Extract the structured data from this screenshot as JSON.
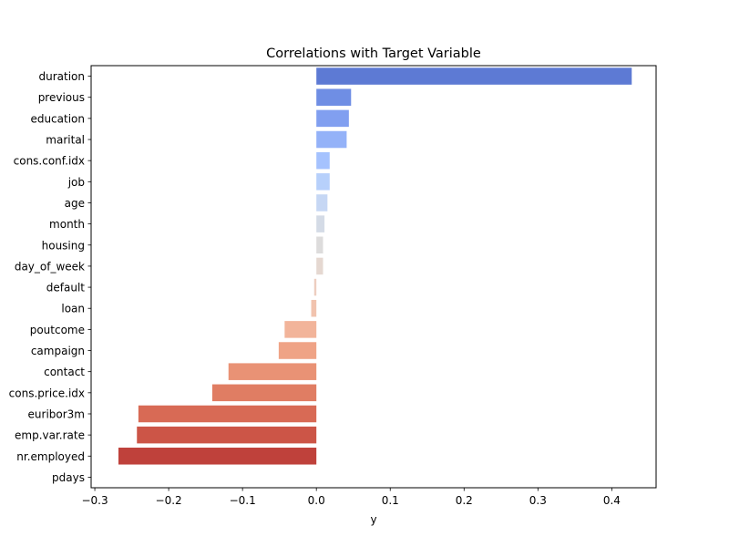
{
  "chart_data": {
    "type": "bar",
    "orientation": "horizontal",
    "title": "Correlations with Target Variable",
    "xlabel": "y",
    "ylabel": "",
    "xlim": [
      -0.305,
      0.46
    ],
    "xticks": [
      -0.3,
      -0.2,
      -0.1,
      0.0,
      0.1,
      0.2,
      0.3,
      0.4
    ],
    "xtick_labels": [
      "−0.3",
      "−0.2",
      "−0.1",
      "0.0",
      "0.1",
      "0.2",
      "0.3",
      "0.4"
    ],
    "grid": false,
    "palette": "coolwarm",
    "categories": [
      "duration",
      "previous",
      "education",
      "marital",
      "cons.conf.idx",
      "job",
      "age",
      "month",
      "housing",
      "day_of_week",
      "default",
      "loan",
      "poutcome",
      "campaign",
      "contact",
      "cons.price.idx",
      "euribor3m",
      "emp.var.rate",
      "nr.employed",
      "pdays"
    ],
    "values": [
      0.427,
      0.047,
      0.044,
      0.041,
      0.018,
      0.018,
      0.015,
      0.011,
      0.009,
      0.009,
      -0.003,
      -0.007,
      -0.043,
      -0.051,
      -0.119,
      -0.141,
      -0.241,
      -0.243,
      -0.268,
      0.0
    ],
    "colors": [
      "#5d7ad4",
      "#6f8ee4",
      "#819ff0",
      "#94b2f8",
      "#a5c2fe",
      "#b7d0fb",
      "#c6d7f4",
      "#d4dbe6",
      "#dddcdc",
      "#e5d8d1",
      "#edcec0",
      "#f1c3ae",
      "#f2b49a",
      "#efa386",
      "#e99275",
      "#e07d63",
      "#d86a55",
      "#cc5547",
      "#bf413b",
      "#b0283c"
    ]
  }
}
